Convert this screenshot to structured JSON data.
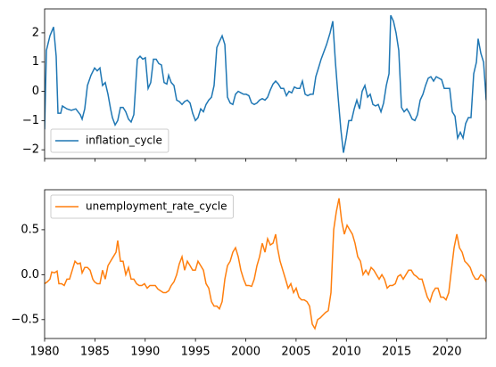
{
  "chart_data": [
    {
      "type": "line",
      "x": [
        1980,
        1980.18,
        1980.53,
        1980.89,
        1981.15,
        1981.33,
        1981.6,
        1981.77,
        1982.22,
        1982.66,
        1983.1,
        1983.55,
        1983.73,
        1983.99,
        1984.26,
        1984.61,
        1984.97,
        1985.23,
        1985.5,
        1985.76,
        1986.03,
        1986.3,
        1986.56,
        1986.74,
        1987.01,
        1987.27,
        1987.54,
        1987.8,
        1988.07,
        1988.34,
        1988.6,
        1988.87,
        1989.22,
        1989.49,
        1989.76,
        1990.02,
        1990.29,
        1990.55,
        1990.82,
        1991.09,
        1991.35,
        1991.62,
        1991.88,
        1992.15,
        1992.33,
        1992.59,
        1992.86,
        1993.13,
        1993.39,
        1993.66,
        1993.92,
        1994.19,
        1994.46,
        1994.72,
        1994.99,
        1995.25,
        1995.52,
        1995.79,
        1996.05,
        1996.32,
        1996.59,
        1996.85,
        1997.12,
        1997.38,
        1997.65,
        1997.92,
        1998.18,
        1998.45,
        1998.71,
        1998.98,
        1999.25,
        1999.51,
        1999.78,
        2000.04,
        2000.31,
        2000.58,
        2000.84,
        2001.11,
        2001.37,
        2001.64,
        2001.91,
        2002.17,
        2002.44,
        2002.71,
        2002.97,
        2003.24,
        2003.5,
        2003.77,
        2004.04,
        2004.3,
        2004.57,
        2004.83,
        2005.1,
        2005.37,
        2005.63,
        2005.9,
        2006.16,
        2006.43,
        2006.7,
        2006.96,
        2007.23,
        2007.49,
        2008.03,
        2008.38,
        2008.65,
        2008.91,
        2009.18,
        2009.45,
        2009.71,
        2009.98,
        2010.24,
        2010.51,
        2010.78,
        2011.04,
        2011.31,
        2011.57,
        2011.84,
        2012.11,
        2012.37,
        2012.64,
        2012.9,
        2013.17,
        2013.44,
        2013.7,
        2013.97,
        2014.24,
        2014.41,
        2014.68,
        2014.94,
        2015.21,
        2015.48,
        2015.74,
        2016.01,
        2016.27,
        2016.54,
        2016.81,
        2017.07,
        2017.34,
        2017.61,
        2017.87,
        2018.14,
        2018.4,
        2018.67,
        2018.94,
        2019.2,
        2019.47,
        2019.73,
        2020,
        2020.27,
        2020.53,
        2020.8,
        2021.06,
        2021.33,
        2021.6,
        2021.86,
        2022.13,
        2022.39,
        2022.66,
        2022.93,
        2023.1,
        2023.37,
        2023.64,
        2023.9
      ],
      "series": [
        {
          "name": "inflation_cycle",
          "color": "#1f77b4",
          "values": [
            -1.3,
            1.4,
            1.9,
            2.2,
            1.2,
            -0.75,
            -0.75,
            -0.5,
            -0.6,
            -0.65,
            -0.6,
            -0.8,
            -0.95,
            -0.6,
            0.2,
            0.55,
            0.8,
            0.7,
            0.8,
            0.2,
            0.3,
            -0.1,
            -0.6,
            -0.9,
            -1.15,
            -1.0,
            -0.55,
            -0.55,
            -0.7,
            -0.95,
            -1.05,
            -0.8,
            1.1,
            1.2,
            1.1,
            1.15,
            0.1,
            0.3,
            1.1,
            1.1,
            0.95,
            0.9,
            0.3,
            0.25,
            0.55,
            0.3,
            0.2,
            -0.3,
            -0.35,
            -0.45,
            -0.35,
            -0.3,
            -0.4,
            -0.75,
            -1.0,
            -0.9,
            -0.6,
            -0.7,
            -0.45,
            -0.3,
            -0.2,
            0.2,
            1.5,
            1.7,
            1.9,
            1.6,
            -0.2,
            -0.4,
            -0.45,
            -0.1,
            0.0,
            -0.05,
            -0.1,
            -0.1,
            -0.15,
            -0.4,
            -0.45,
            -0.4,
            -0.3,
            -0.25,
            -0.3,
            -0.2,
            0.05,
            0.25,
            0.35,
            0.25,
            0.1,
            0.1,
            -0.15,
            0.0,
            -0.05,
            0.15,
            0.1,
            0.1,
            0.35,
            -0.1,
            -0.15,
            -0.1,
            -0.1,
            0.5,
            0.8,
            1.1,
            1.6,
            2.0,
            2.4,
            1.0,
            -0.2,
            -1.3,
            -2.1,
            -1.6,
            -1.0,
            -1.0,
            -0.6,
            -0.3,
            -0.6,
            0.0,
            0.2,
            -0.2,
            -0.1,
            -0.45,
            -0.5,
            -0.45,
            -0.7,
            -0.4,
            0.2,
            0.6,
            2.6,
            2.4,
            2.0,
            1.4,
            -0.55,
            -0.7,
            -0.6,
            -0.75,
            -0.95,
            -1.0,
            -0.8,
            -0.3,
            -0.1,
            0.2,
            0.45,
            0.5,
            0.35,
            0.5,
            0.45,
            0.4,
            0.1,
            0.1,
            0.1,
            -0.7,
            -0.85,
            -1.6,
            -1.4,
            -1.6,
            -1.1,
            -0.9,
            -0.9,
            0.6,
            1.0,
            1.8,
            1.3,
            1.0,
            -0.3
          ]
        }
      ],
      "xlim": [
        1980,
        2023.9
      ],
      "ylim": [
        -2.3,
        2.82
      ],
      "yticks": [
        {
          "value": -2,
          "label": "−2"
        },
        {
          "value": -1,
          "label": "−1"
        },
        0,
        1,
        2
      ],
      "legend": "lower left"
    },
    {
      "type": "line",
      "x": [
        1980,
        1980.27,
        1980.53,
        1980.71,
        1980.98,
        1981.24,
        1981.42,
        1981.69,
        1981.95,
        1982.22,
        1982.48,
        1982.75,
        1983.02,
        1983.28,
        1983.55,
        1983.73,
        1983.99,
        1984.26,
        1984.52,
        1984.79,
        1984.97,
        1985.23,
        1985.5,
        1985.76,
        1986.03,
        1986.3,
        1986.56,
        1986.83,
        1987.1,
        1987.27,
        1987.54,
        1987.8,
        1988.07,
        1988.34,
        1988.6,
        1988.87,
        1989.14,
        1989.4,
        1989.67,
        1989.93,
        1990.2,
        1990.47,
        1990.73,
        1991,
        1991.26,
        1991.53,
        1991.8,
        1992.06,
        1992.33,
        1992.59,
        1992.86,
        1993.13,
        1993.39,
        1993.66,
        1993.92,
        1994.19,
        1994.46,
        1994.72,
        1994.99,
        1995.25,
        1995.52,
        1995.79,
        1996.05,
        1996.32,
        1996.59,
        1996.85,
        1997.12,
        1997.38,
        1997.65,
        1997.92,
        1998.18,
        1998.45,
        1998.71,
        1998.98,
        1999.25,
        1999.51,
        1999.78,
        2000.04,
        2000.31,
        2000.58,
        2000.84,
        2001.11,
        2001.37,
        2001.64,
        2001.91,
        2002.17,
        2002.44,
        2002.71,
        2002.97,
        2003.15,
        2003.41,
        2003.68,
        2003.95,
        2004.21,
        2004.48,
        2004.75,
        2005.01,
        2005.28,
        2005.54,
        2005.81,
        2006.08,
        2006.34,
        2006.61,
        2006.87,
        2007.14,
        2007.41,
        2007.67,
        2007.94,
        2008.2,
        2008.47,
        2008.74,
        2009,
        2009.27,
        2009.53,
        2009.8,
        2010.07,
        2010.33,
        2010.6,
        2010.86,
        2011.13,
        2011.4,
        2011.66,
        2011.93,
        2012.19,
        2012.46,
        2012.73,
        2012.99,
        2013.26,
        2013.53,
        2013.79,
        2014.06,
        2014.32,
        2014.59,
        2014.86,
        2015.12,
        2015.39,
        2015.65,
        2015.92,
        2016.19,
        2016.45,
        2016.72,
        2016.98,
        2017.25,
        2017.52,
        2017.78,
        2018.05,
        2018.31,
        2018.58,
        2018.85,
        2019.11,
        2019.38,
        2019.65,
        2019.91,
        2020.18,
        2020.44,
        2020.71,
        2020.98,
        2021.24,
        2021.51,
        2021.77,
        2022.04,
        2022.31,
        2022.57,
        2022.84,
        2023.1,
        2023.37,
        2023.64,
        2023.9
      ],
      "series": [
        {
          "name": "unemployment_rate_cycle",
          "color": "#ff7f0e",
          "values": [
            -0.1,
            -0.08,
            -0.05,
            0.03,
            0.02,
            0.04,
            -0.1,
            -0.1,
            -0.12,
            -0.05,
            -0.05,
            0.05,
            0.15,
            0.12,
            0.13,
            0.02,
            0.08,
            0.08,
            0.05,
            -0.05,
            -0.08,
            -0.1,
            -0.1,
            0.05,
            -0.05,
            0.1,
            0.15,
            0.2,
            0.25,
            0.38,
            0.15,
            0.15,
            0,
            0.08,
            -0.05,
            -0.05,
            -0.1,
            -0.12,
            -0.12,
            -0.1,
            -0.15,
            -0.12,
            -0.12,
            -0.12,
            -0.16,
            -0.18,
            -0.2,
            -0.2,
            -0.18,
            -0.12,
            -0.08,
            0,
            0.12,
            0.2,
            0.05,
            0.15,
            0.1,
            0.05,
            0.05,
            0.15,
            0.1,
            0.05,
            -0.1,
            -0.15,
            -0.3,
            -0.35,
            -0.35,
            -0.38,
            -0.3,
            -0.05,
            0.1,
            0.15,
            0.25,
            0.3,
            0.2,
            0.05,
            -0.05,
            -0.12,
            -0.12,
            -0.13,
            -0.05,
            0.1,
            0.2,
            0.35,
            0.25,
            0.4,
            0.33,
            0.35,
            0.45,
            0.3,
            0.15,
            0.05,
            -0.05,
            -0.15,
            -0.1,
            -0.2,
            -0.15,
            -0.25,
            -0.28,
            -0.28,
            -0.3,
            -0.35,
            -0.55,
            -0.6,
            -0.5,
            -0.48,
            -0.45,
            -0.42,
            -0.4,
            -0.2,
            0.5,
            0.7,
            0.85,
            0.6,
            0.45,
            0.55,
            0.5,
            0.45,
            0.35,
            0.2,
            0.15,
            0,
            0.05,
            0,
            0.08,
            0.05,
            0,
            -0.05,
            0,
            -0.05,
            -0.15,
            -0.12,
            -0.12,
            -0.1,
            -0.02,
            0,
            -0.05,
            0,
            0.05,
            0.05,
            0,
            -0.02,
            -0.05,
            -0.05,
            -0.15,
            -0.25,
            -0.3,
            -0.2,
            -0.15,
            -0.15,
            -0.25,
            -0.25,
            -0.28,
            -0.2,
            0.05,
            0.3,
            0.45,
            0.3,
            0.25,
            0.15,
            0.12,
            0.08,
            0,
            -0.05,
            -0.05,
            0,
            -0.02,
            -0.08
          ]
        }
      ],
      "xlim": [
        1980,
        2023.9
      ],
      "xticks": [
        1980,
        1985,
        1990,
        1995,
        2000,
        2005,
        2010,
        2015,
        2020
      ],
      "ylim": [
        -0.71,
        0.945
      ],
      "yticks": [
        {
          "value": -0.5,
          "label": "−0.5"
        },
        {
          "value": 0,
          "label": "0.0"
        },
        {
          "value": 0.5,
          "label": "0.5"
        }
      ],
      "legend": "upper left"
    }
  ]
}
